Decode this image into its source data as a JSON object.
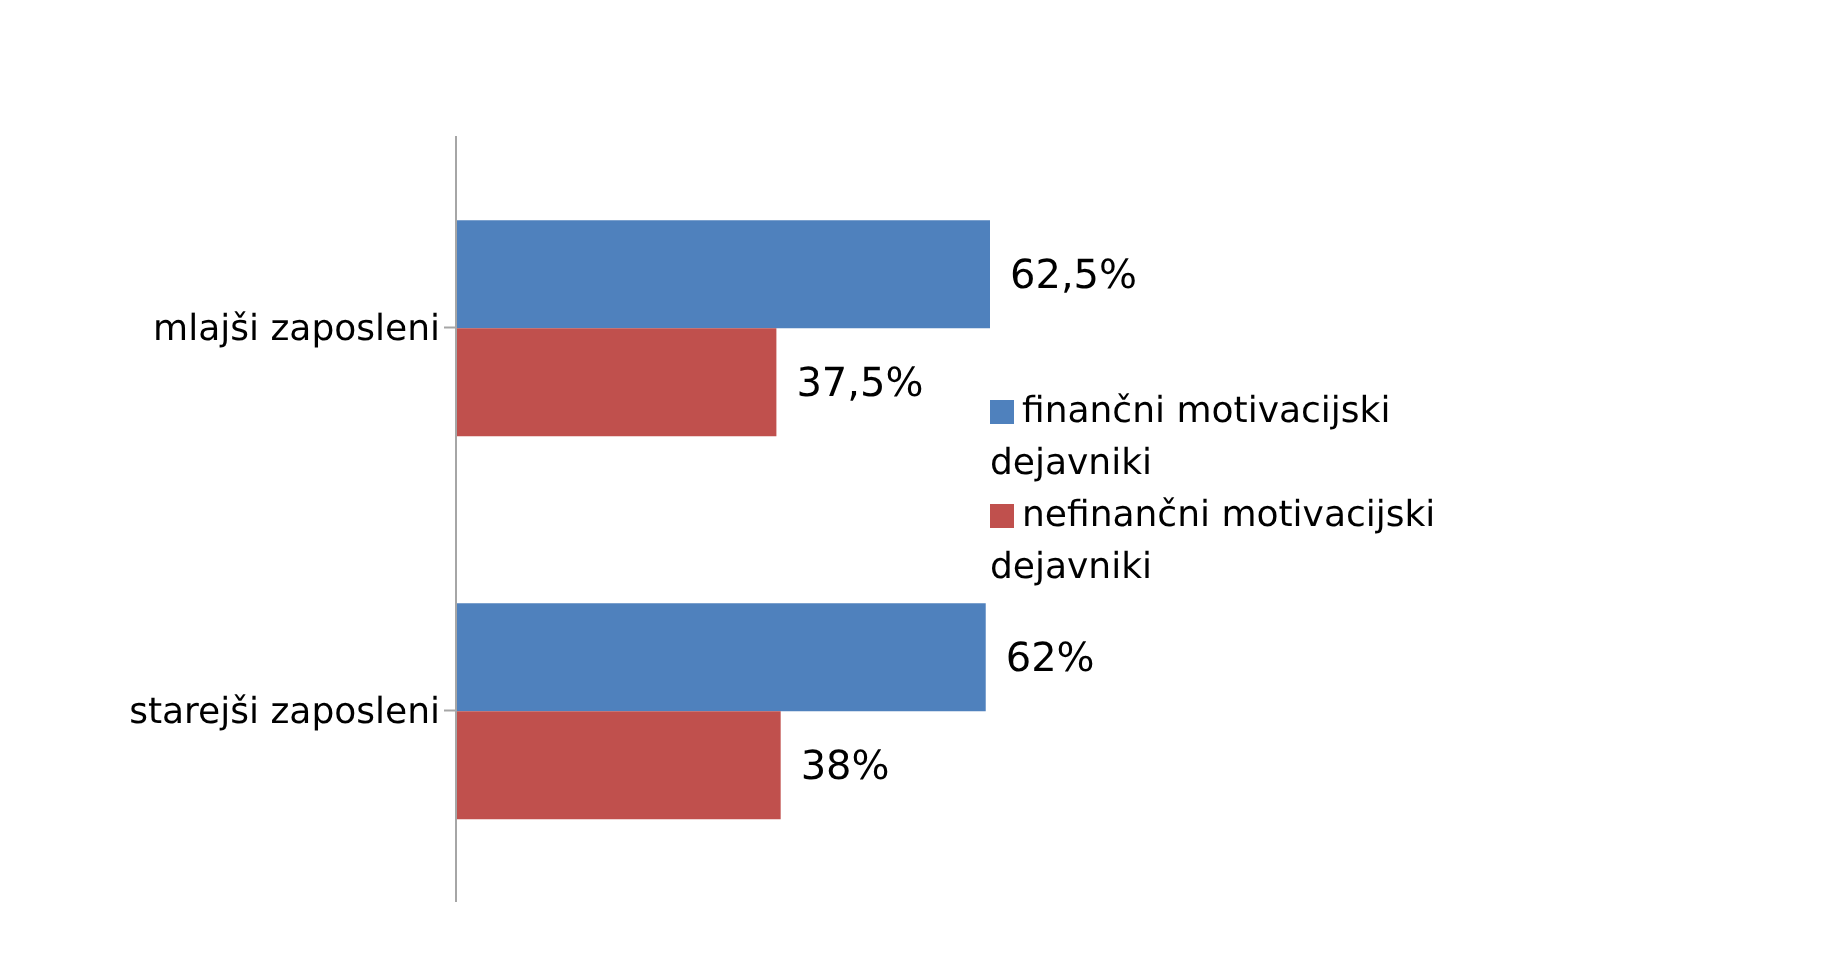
{
  "chart_data": {
    "type": "bar",
    "orientation": "horizontal",
    "categories": [
      "mlajši zaposleni",
      "starejši zaposleni"
    ],
    "series": [
      {
        "name": "finančni motivacijski dejavniki",
        "color": "#4f81bd",
        "values": [
          62.5,
          62
        ],
        "value_labels": [
          "62,5%",
          "62%"
        ]
      },
      {
        "name": "nefinančni motivacijski dejavniki",
        "color": "#c0504d",
        "values": [
          37.5,
          38
        ],
        "value_labels": [
          "37,5%",
          "38%"
        ]
      }
    ],
    "legend": "right"
  }
}
